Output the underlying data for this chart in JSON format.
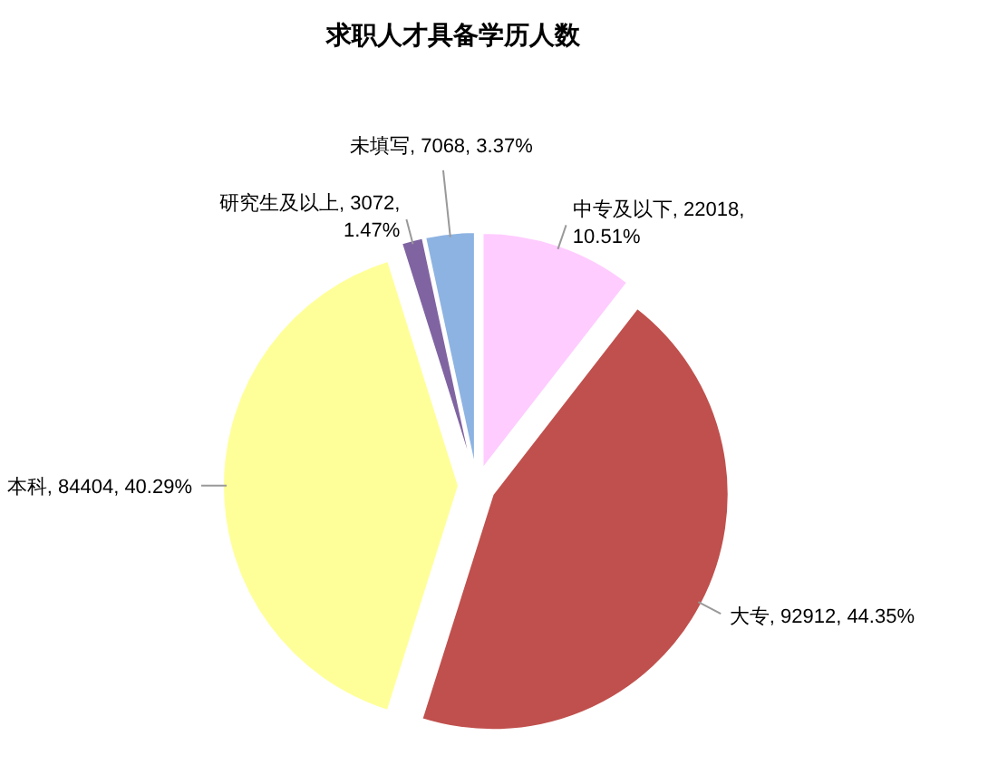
{
  "chart_data": {
    "type": "pie",
    "title": "求职人才具备学历人数",
    "categories": [
      "中专及以下",
      "大专",
      "本科",
      "研究生及以上",
      "未填写"
    ],
    "values": [
      22018,
      92912,
      84404,
      3072,
      7068
    ],
    "value_labels": [
      "22018, 10.51%",
      "92912, 44.35%",
      "84404, 40.29%",
      "3072, 1.47%",
      "7068, 3.37%"
    ],
    "colors": [
      "#ffccff",
      "#c0504d",
      "#ffff99",
      "#8064a2",
      "#8db3e2"
    ]
  }
}
